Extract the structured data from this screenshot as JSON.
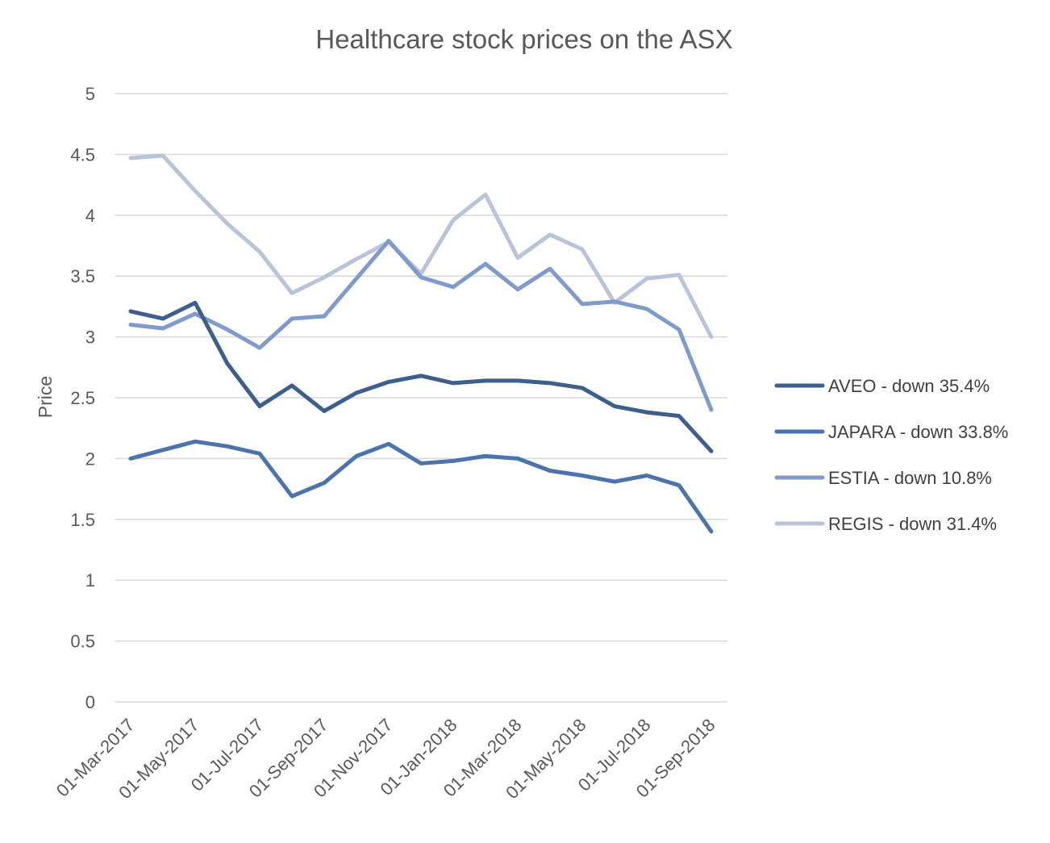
{
  "chart_data": {
    "type": "line",
    "title": "Healthcare stock prices on the ASX",
    "xlabel": "",
    "ylabel": "Price",
    "ylim": [
      0,
      5
    ],
    "yticks": [
      "0",
      "0.5",
      "1",
      "1.5",
      "2",
      "2.5",
      "3",
      "3.5",
      "4",
      "4.5",
      "5"
    ],
    "x": [
      "2017-03-01",
      "2017-04-01",
      "2017-05-01",
      "2017-06-01",
      "2017-07-01",
      "2017-08-01",
      "2017-09-01",
      "2017-10-01",
      "2017-11-01",
      "2017-12-01",
      "2018-01-01",
      "2018-02-01",
      "2018-03-01",
      "2018-04-01",
      "2018-05-01",
      "2018-06-01",
      "2018-07-01",
      "2018-08-01",
      "2018-09-01"
    ],
    "xtick_labels": [
      "01-Mar-2017",
      "01-May-2017",
      "01-Jul-2017",
      "01-Sep-2017",
      "01-Nov-2017",
      "01-Jan-2018",
      "01-Mar-2018",
      "01-May-2018",
      "01-Jul-2018",
      "01-Sep-2018"
    ],
    "grid": true,
    "legend_position": "right",
    "series": [
      {
        "name": "AVEO - down 35.4%",
        "color": "#3d5f8d",
        "values": [
          3.21,
          3.15,
          3.28,
          2.78,
          2.43,
          2.6,
          2.39,
          2.54,
          2.63,
          2.68,
          2.62,
          2.64,
          2.64,
          2.62,
          2.58,
          2.43,
          2.38,
          2.35,
          2.06
        ]
      },
      {
        "name": "JAPARA - down 33.8%",
        "color": "#4b74ad",
        "values": [
          2.0,
          2.07,
          2.14,
          2.1,
          2.04,
          1.69,
          1.8,
          2.02,
          2.12,
          1.96,
          1.98,
          2.02,
          2.0,
          1.9,
          1.86,
          1.81,
          1.86,
          1.78,
          1.4
        ]
      },
      {
        "name": "ESTIA - down 10.8%",
        "color": "#7e9bcb",
        "values": [
          3.1,
          3.07,
          3.19,
          3.06,
          2.91,
          3.15,
          3.17,
          3.48,
          3.79,
          3.49,
          3.41,
          3.6,
          3.39,
          3.56,
          3.27,
          3.29,
          3.23,
          3.06,
          2.4
        ]
      },
      {
        "name": "REGIS - down 31.4%",
        "color": "#b8c4dc",
        "values": [
          4.47,
          4.49,
          4.2,
          3.93,
          3.7,
          3.36,
          3.49,
          3.64,
          3.78,
          3.52,
          3.96,
          4.17,
          3.65,
          3.84,
          3.72,
          3.28,
          3.48,
          3.51,
          3.0
        ]
      }
    ]
  }
}
